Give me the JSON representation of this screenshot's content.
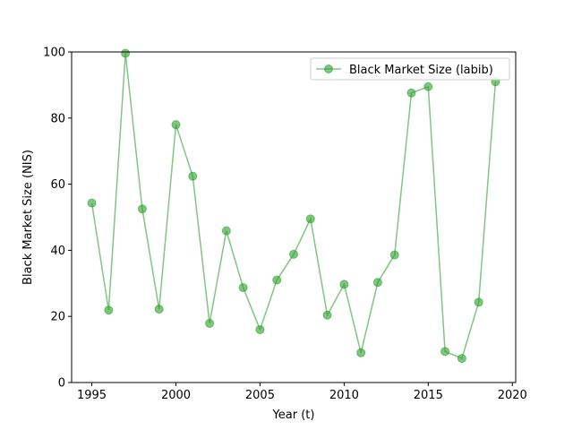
{
  "chart_data": {
    "type": "line",
    "title": "",
    "xlabel": "Year (t)",
    "ylabel": "Black Market Size (NIS)",
    "xlim": [
      1993.8,
      2020.2
    ],
    "ylim": [
      0,
      100
    ],
    "xticks": [
      1995,
      2000,
      2005,
      2010,
      2015,
      2020
    ],
    "yticks": [
      0,
      20,
      40,
      60,
      80,
      100
    ],
    "grid": false,
    "legend_position": "top-right",
    "series": [
      {
        "name": "Black Market Size (labib)",
        "color": "#2ca02c",
        "marker": "circle",
        "x": [
          1995,
          1996,
          1997,
          1998,
          1999,
          2000,
          2001,
          2002,
          2003,
          2004,
          2005,
          2006,
          2007,
          2008,
          2009,
          2010,
          2011,
          2012,
          2013,
          2014,
          2015,
          2016,
          2017,
          2018,
          2019
        ],
        "y": [
          54.3,
          21.9,
          99.6,
          52.5,
          22.2,
          78.0,
          62.4,
          17.9,
          45.9,
          28.7,
          16.0,
          31.0,
          38.8,
          49.5,
          20.4,
          29.7,
          9.0,
          30.3,
          38.6,
          87.6,
          89.5,
          9.4,
          7.3,
          24.3,
          91.0
        ]
      }
    ]
  }
}
